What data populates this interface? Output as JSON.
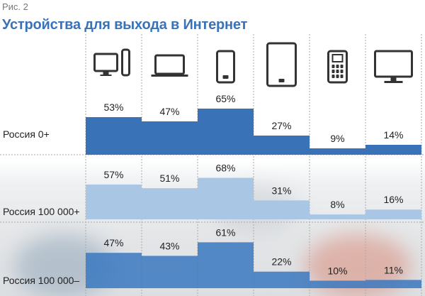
{
  "chart_data": {
    "type": "bar",
    "figure_label": "Рис. 2",
    "title": "Устройства для выхода в Интернет",
    "categories": [
      "desktop-computer-icon",
      "laptop-icon",
      "smartphone-icon",
      "tablet-icon",
      "feature-phone-icon",
      "tv-icon"
    ],
    "series": [
      {
        "name": "Россия 0+",
        "values": [
          53,
          47,
          65,
          27,
          9,
          14
        ],
        "color": "#3a72b8"
      },
      {
        "name": "Россия 100 000+",
        "values": [
          57,
          51,
          68,
          31,
          8,
          16
        ],
        "color": "#a9c7e4"
      },
      {
        "name": "Россия 100 000–",
        "values": [
          47,
          43,
          61,
          22,
          10,
          11
        ],
        "color": "#3a78c0"
      }
    ],
    "value_suffix": "%",
    "grid": "dashed vertical and row separators",
    "legend": "row labels at left"
  }
}
